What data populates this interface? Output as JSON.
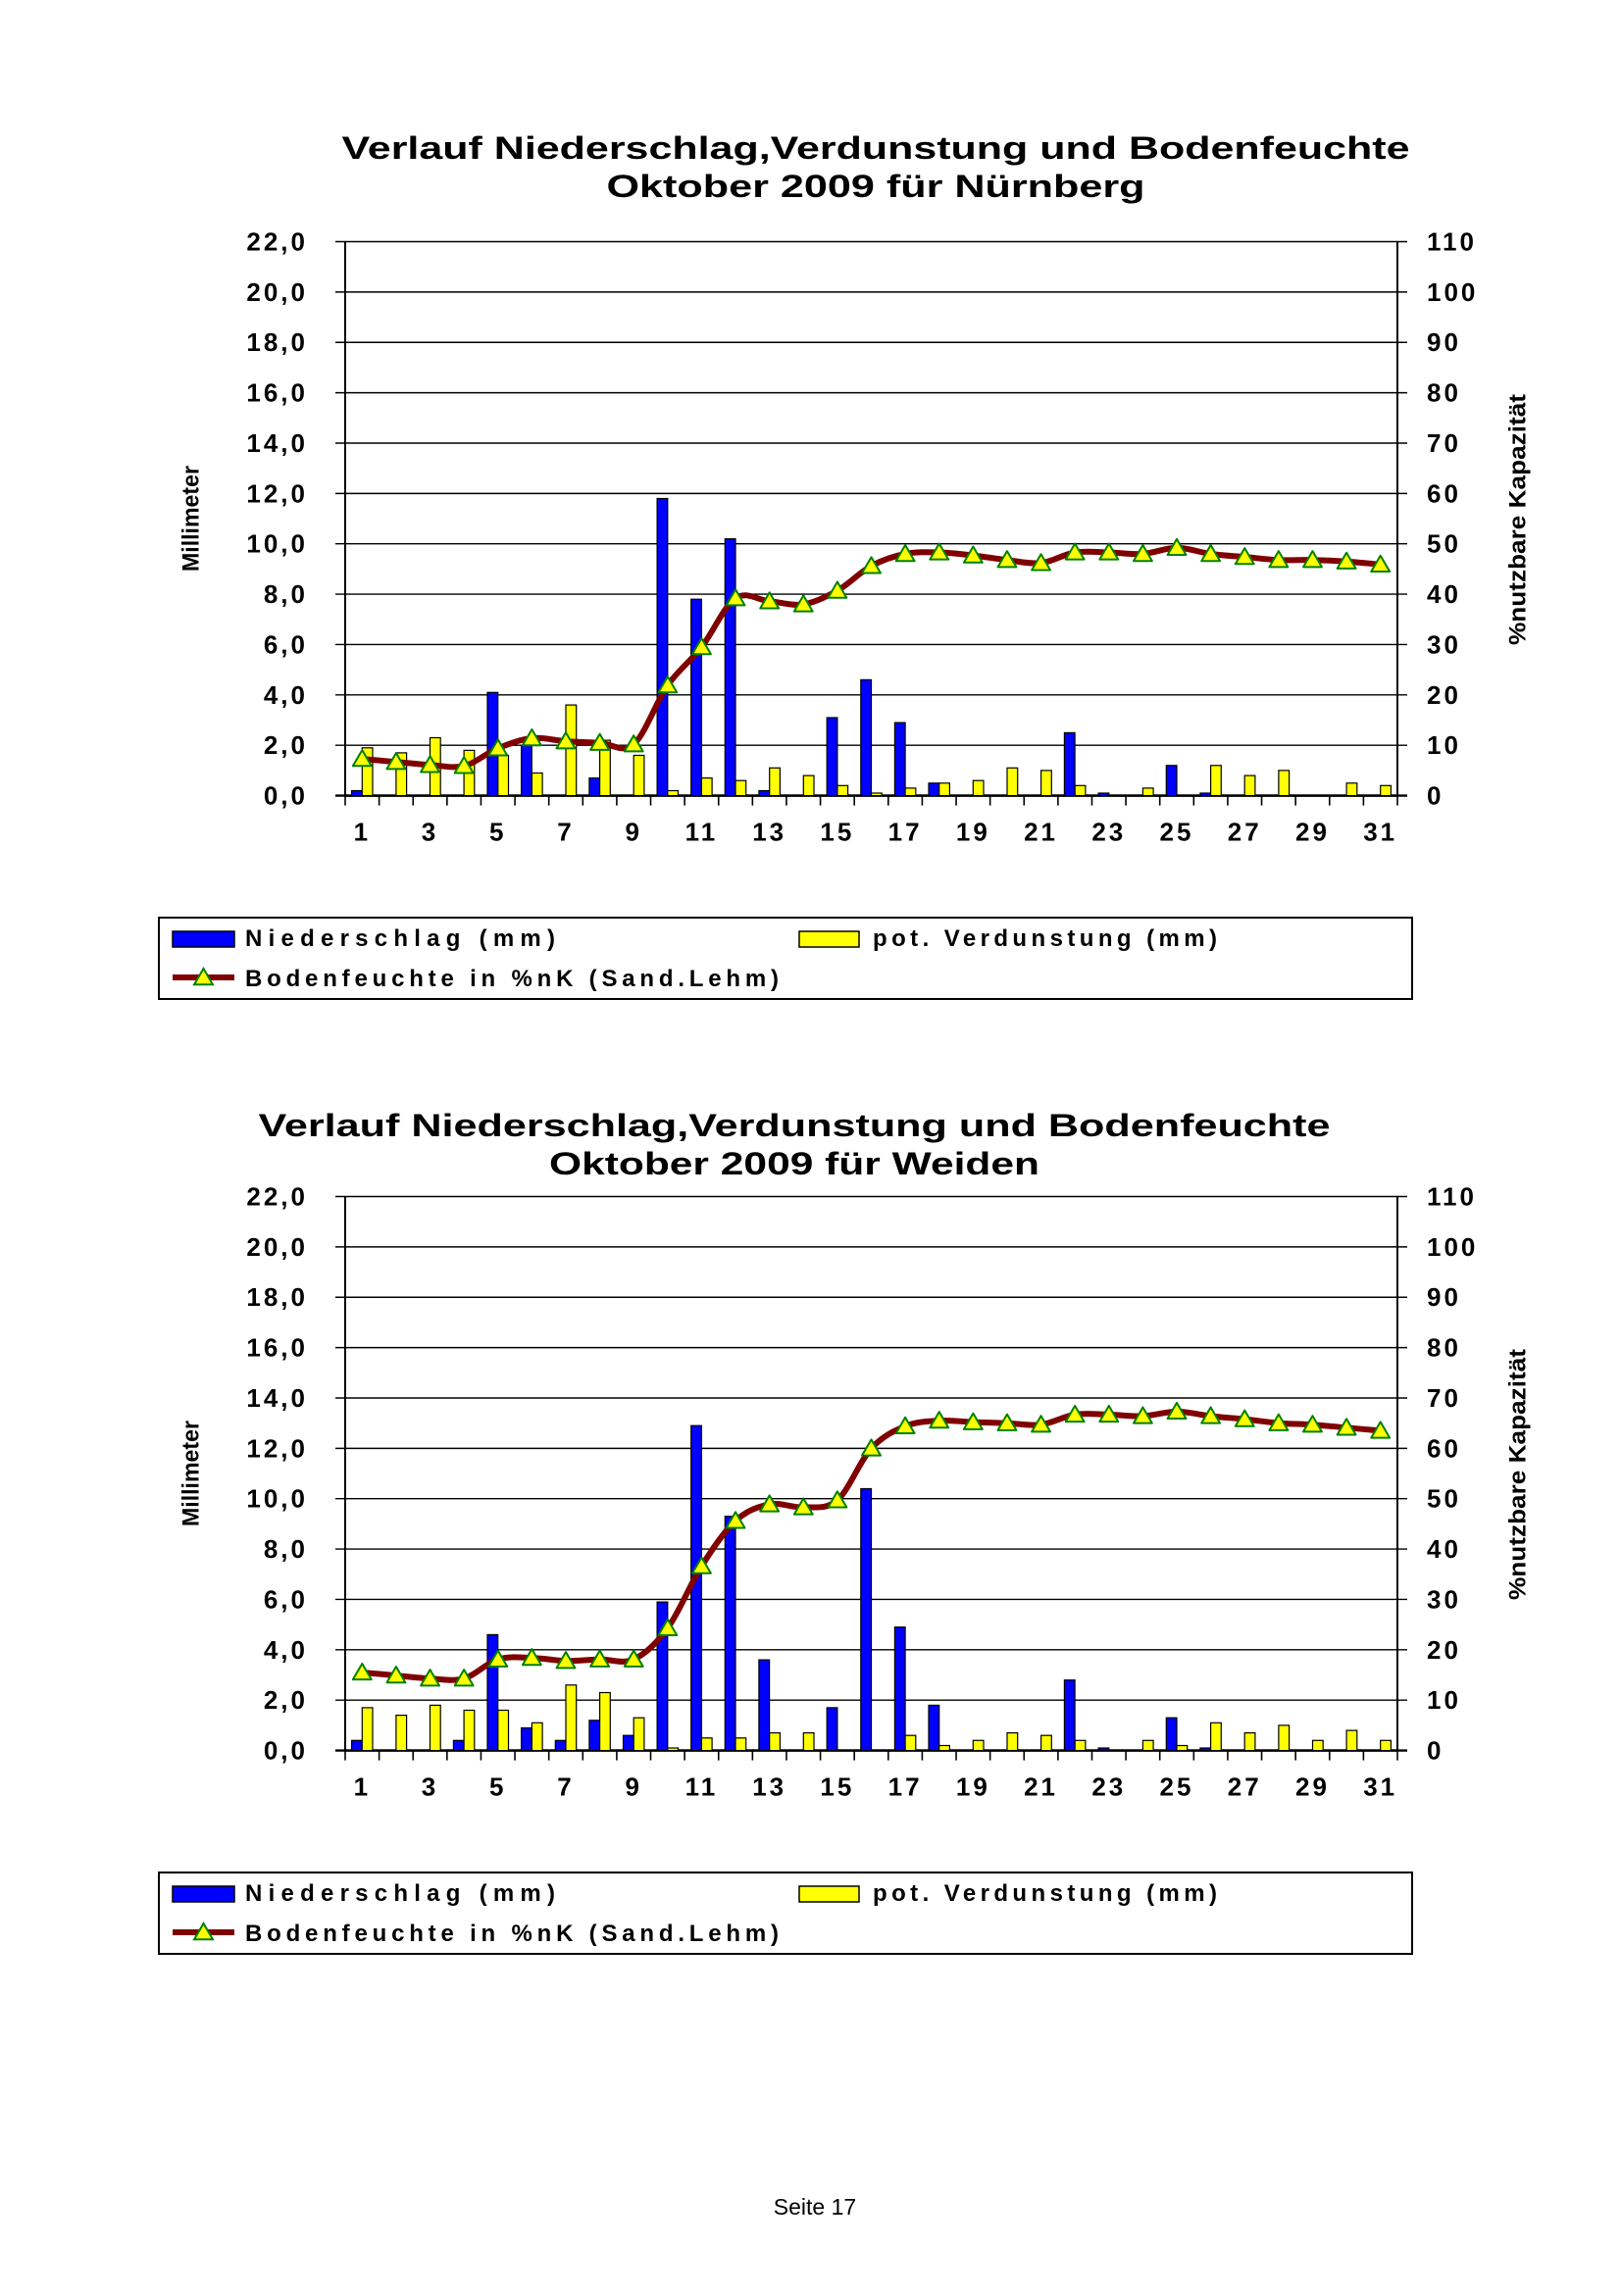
{
  "page": {
    "footer": "Seite 17"
  },
  "chart_data": [
    {
      "type": "bar",
      "title": "Verlauf Niederschlag,Verdunstung und Bodenfeuchte",
      "subtitle": "Oktober 2009 für Nürnberg",
      "ylabel": "Millimeter",
      "y2label": "%nutzbare Kapazität",
      "ylim": [
        0,
        22
      ],
      "y2lim": [
        0,
        110
      ],
      "grid": true,
      "legend_position": "bottom",
      "x": [
        1,
        2,
        3,
        4,
        5,
        6,
        7,
        8,
        9,
        10,
        11,
        12,
        13,
        14,
        15,
        16,
        17,
        18,
        19,
        20,
        21,
        22,
        23,
        24,
        25,
        26,
        27,
        28,
        29,
        30,
        31
      ],
      "x_tick_labels": [
        "1",
        "3",
        "5",
        "7",
        "9",
        "11",
        "13",
        "15",
        "17",
        "19",
        "21",
        "23",
        "25",
        "27",
        "29",
        "31"
      ],
      "y_tick_labels": [
        "0,0",
        "2,0",
        "4,0",
        "6,0",
        "8,0",
        "10,0",
        "12,0",
        "14,0",
        "16,0",
        "18,0",
        "20,0",
        "22,0"
      ],
      "y2_tick_labels": [
        "0",
        "10",
        "20",
        "30",
        "40",
        "50",
        "60",
        "70",
        "80",
        "90",
        "100",
        "110"
      ],
      "series": [
        {
          "name": "Niederschlag (mm)",
          "kind": "bar",
          "axis": "left",
          "color": "#0000FF",
          "values": [
            0.2,
            0,
            0,
            0,
            4.1,
            2.0,
            0,
            0.7,
            0,
            11.8,
            7.8,
            10.2,
            0.2,
            0,
            3.1,
            4.6,
            2.9,
            0.5,
            0,
            0,
            0,
            2.5,
            0.1,
            0,
            1.2,
            0.1,
            0,
            0,
            0,
            0,
            0
          ]
        },
        {
          "name": "pot. Verdunstung (mm)",
          "kind": "bar",
          "axis": "left",
          "color": "#FFFF00",
          "values": [
            1.9,
            1.7,
            2.3,
            1.8,
            1.6,
            0.9,
            3.6,
            2.2,
            1.6,
            0.2,
            0.7,
            0.6,
            1.1,
            0.8,
            0.4,
            0.1,
            0.3,
            0.5,
            0.6,
            1.1,
            1.0,
            0.4,
            0,
            0.3,
            0,
            1.2,
            0.8,
            1.0,
            0,
            0.5,
            0.4
          ]
        },
        {
          "name": "Bodenfeuchte in %nK (Sand.Lehm)",
          "kind": "line",
          "axis": "right",
          "color": "#800000",
          "marker": "triangle",
          "marker_fill": "#FFFF00",
          "marker_stroke": "#008000",
          "values": [
            7.3,
            6.7,
            6.1,
            5.9,
            9.4,
            11.4,
            10.8,
            10.5,
            10.2,
            21.9,
            29.5,
            39.2,
            38.6,
            38.0,
            40.7,
            45.6,
            48.0,
            48.3,
            47.7,
            46.8,
            46.2,
            48.3,
            48.3,
            48.0,
            49.2,
            48.0,
            47.4,
            46.8,
            46.8,
            46.5,
            45.9
          ]
        }
      ]
    },
    {
      "type": "bar",
      "title": "Verlauf Niederschlag,Verdunstung und Bodenfeuchte",
      "subtitle": "Oktober 2009 für Weiden",
      "ylabel": "Millimeter",
      "y2label": "%nutzbare Kapazität",
      "ylim": [
        0,
        22
      ],
      "y2lim": [
        0,
        110
      ],
      "grid": true,
      "legend_position": "bottom",
      "x": [
        1,
        2,
        3,
        4,
        5,
        6,
        7,
        8,
        9,
        10,
        11,
        12,
        13,
        14,
        15,
        16,
        17,
        18,
        19,
        20,
        21,
        22,
        23,
        24,
        25,
        26,
        27,
        28,
        29,
        30,
        31
      ],
      "x_tick_labels": [
        "1",
        "3",
        "5",
        "7",
        "9",
        "11",
        "13",
        "15",
        "17",
        "19",
        "21",
        "23",
        "25",
        "27",
        "29",
        "31"
      ],
      "y_tick_labels": [
        "0,0",
        "2,0",
        "4,0",
        "6,0",
        "8,0",
        "10,0",
        "12,0",
        "14,0",
        "16,0",
        "18,0",
        "20,0",
        "22,0"
      ],
      "y2_tick_labels": [
        "0",
        "10",
        "20",
        "30",
        "40",
        "50",
        "60",
        "70",
        "80",
        "90",
        "100",
        "110"
      ],
      "series": [
        {
          "name": "Niederschlag (mm)",
          "kind": "bar",
          "axis": "left",
          "color": "#0000FF",
          "values": [
            0.4,
            0,
            0,
            0.4,
            4.6,
            0.9,
            0.4,
            1.2,
            0.6,
            5.9,
            12.9,
            9.3,
            3.6,
            0,
            1.7,
            10.4,
            4.9,
            1.8,
            0,
            0,
            0,
            2.8,
            0.1,
            0,
            1.3,
            0.1,
            0,
            0,
            0,
            0,
            0
          ]
        },
        {
          "name": "pot. Verdunstung (mm)",
          "kind": "bar",
          "axis": "left",
          "color": "#FFFF00",
          "values": [
            1.7,
            1.4,
            1.8,
            1.6,
            1.6,
            1.1,
            2.6,
            2.3,
            1.3,
            0.1,
            0.5,
            0.5,
            0.7,
            0.7,
            0,
            0,
            0.6,
            0.2,
            0.4,
            0.7,
            0.6,
            0.4,
            0,
            0.4,
            0.2,
            1.1,
            0.7,
            1.0,
            0.4,
            0.8,
            0.4
          ]
        },
        {
          "name": "Bodenfeuchte in %nK (Sand.Lehm)",
          "kind": "line",
          "axis": "right",
          "color": "#800000",
          "marker": "triangle",
          "marker_fill": "#FFFF00",
          "marker_stroke": "#008000",
          "values": [
            15.5,
            14.9,
            14.3,
            14.3,
            18.1,
            18.4,
            17.8,
            18.1,
            18.1,
            24.3,
            36.6,
            45.6,
            48.9,
            48.3,
            49.7,
            60.0,
            64.4,
            65.5,
            65.2,
            65.0,
            64.7,
            66.7,
            66.7,
            66.4,
            67.3,
            66.4,
            65.8,
            65.0,
            64.7,
            64.1,
            63.5
          ]
        }
      ]
    }
  ]
}
